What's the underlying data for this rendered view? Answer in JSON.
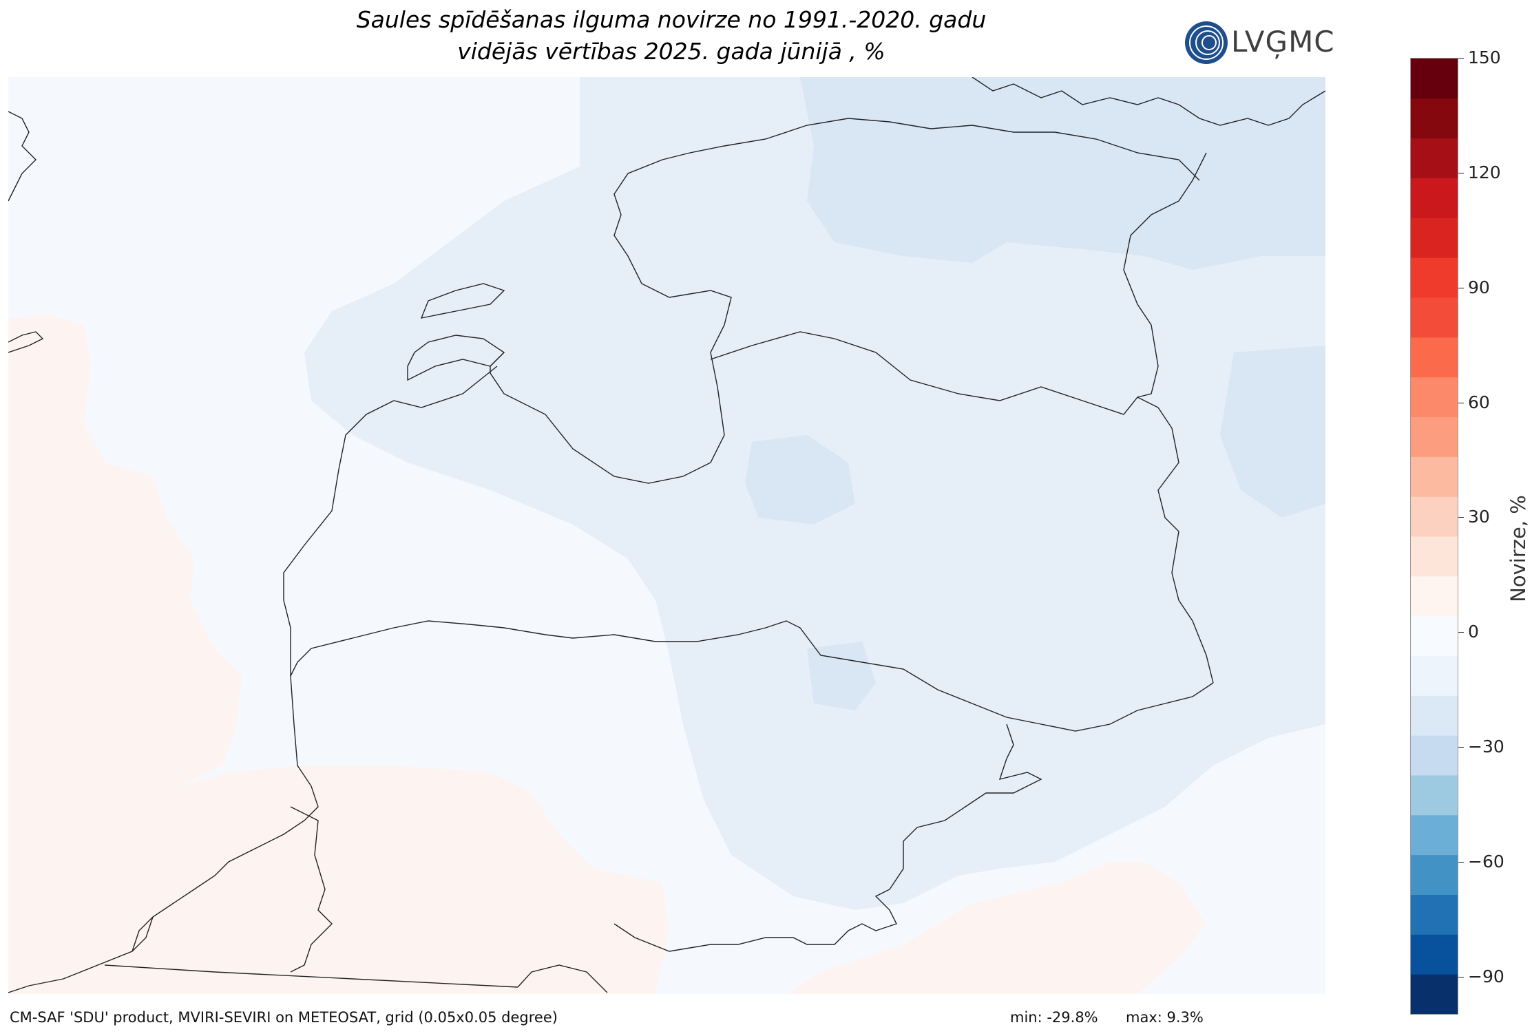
{
  "title": {
    "line1": "Saules spīdēšanas ilguma novirze no 1991.-2020. gadu",
    "line2": "vidējās vērtības 2025. gada jūnijā , %"
  },
  "logo": {
    "text": "LVĢMC"
  },
  "colorbar": {
    "label": "Novirze, %",
    "ticks": [
      "150",
      "120",
      "90",
      "60",
      "30",
      "0",
      "−30",
      "−60",
      "−90"
    ],
    "colors": [
      "#08306b",
      "#08519c",
      "#2171b5",
      "#4292c6",
      "#6baed6",
      "#9ecae1",
      "#c6dbef",
      "#dbe9f6",
      "#eef4fb",
      "#f7fbff",
      "#fff5f0",
      "#fee5d9",
      "#fcd1bf",
      "#fcbba1",
      "#fc9d7f",
      "#fc8a6a",
      "#fb6a4a",
      "#f34c38",
      "#ef3b2c",
      "#d9241f",
      "#cb181d",
      "#a50f15",
      "#85080f"
    ],
    "color_bottom": "#08306b",
    "color_top": "#67000d"
  },
  "map": {
    "colors": {
      "sea_light": "#f5f9fe",
      "negative_light": "#e6eef8",
      "negative_medium": "#d9e6f4",
      "positive_light": "#fdf4f1",
      "border": "#222222"
    }
  },
  "footer": {
    "source": "CM-SAF 'SDU' product, MVIRI-SEVIRI on METEOSAT, grid (0.05x0.05 degree)",
    "min": "min: -29.8%",
    "max": "max: 9.3%"
  }
}
